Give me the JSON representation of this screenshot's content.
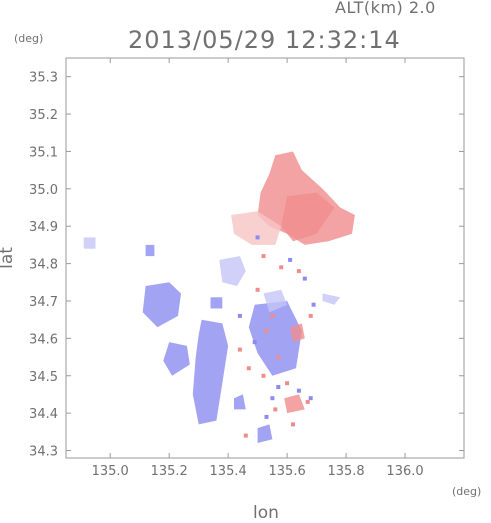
{
  "header": {
    "alt_label": "ALT(km) 2.0",
    "timestamp": "2013/05/29 12:32:14",
    "unit_y": "(deg)",
    "unit_x": "(deg)"
  },
  "chart_data": {
    "type": "heatmap",
    "xlabel": "lon",
    "ylabel": "lat",
    "xlim": [
      134.85,
      136.2
    ],
    "ylim": [
      34.28,
      35.35
    ],
    "x_ticks": [
      "135.0",
      "135.2",
      "135.4",
      "135.6",
      "135.8",
      "136.0"
    ],
    "y_ticks": [
      "34.3",
      "34.4",
      "34.5",
      "34.6",
      "34.7",
      "34.8",
      "34.9",
      "35.0",
      "35.1",
      "35.2",
      "35.3"
    ],
    "x_tick_values": [
      135.0,
      135.2,
      135.4,
      135.6,
      135.8,
      136.0
    ],
    "y_tick_values": [
      34.3,
      34.4,
      34.5,
      34.6,
      34.7,
      34.8,
      34.9,
      35.0,
      35.1,
      35.2,
      35.3
    ],
    "colors": {
      "positive": "#f08c8c",
      "positive_light": "#f6c4c4",
      "negative": "#8c8cf0",
      "negative_light": "#c4c4f6"
    },
    "regions": [
      {
        "polarity": "positive",
        "points": [
          [
            135.56,
            35.09
          ],
          [
            135.62,
            35.1
          ],
          [
            135.65,
            35.05
          ],
          [
            135.72,
            35.0
          ],
          [
            135.78,
            34.95
          ],
          [
            135.83,
            34.93
          ],
          [
            135.82,
            34.88
          ],
          [
            135.74,
            34.86
          ],
          [
            135.66,
            34.85
          ],
          [
            135.6,
            34.88
          ],
          [
            135.54,
            34.9
          ],
          [
            135.5,
            34.93
          ],
          [
            135.51,
            34.99
          ],
          [
            135.54,
            35.04
          ]
        ]
      },
      {
        "polarity": "positive",
        "points": [
          [
            135.6,
            34.98
          ],
          [
            135.7,
            34.99
          ],
          [
            135.76,
            34.95
          ],
          [
            135.7,
            34.88
          ],
          [
            135.62,
            34.86
          ],
          [
            135.58,
            34.9
          ]
        ]
      },
      {
        "polarity": "positive_light",
        "points": [
          [
            135.41,
            34.93
          ],
          [
            135.5,
            34.94
          ],
          [
            135.58,
            34.9
          ],
          [
            135.56,
            34.85
          ],
          [
            135.48,
            34.85
          ],
          [
            135.42,
            34.88
          ]
        ]
      },
      {
        "polarity": "negative",
        "points": [
          [
            135.12,
            34.74
          ],
          [
            135.2,
            34.75
          ],
          [
            135.24,
            34.72
          ],
          [
            135.23,
            34.66
          ],
          [
            135.16,
            34.63
          ],
          [
            135.11,
            34.67
          ]
        ]
      },
      {
        "polarity": "negative",
        "points": [
          [
            135.31,
            34.65
          ],
          [
            135.38,
            34.64
          ],
          [
            135.4,
            34.58
          ],
          [
            135.38,
            34.48
          ],
          [
            135.36,
            34.38
          ],
          [
            135.3,
            34.37
          ],
          [
            135.28,
            34.45
          ],
          [
            135.29,
            34.55
          ],
          [
            135.3,
            34.61
          ]
        ]
      },
      {
        "polarity": "negative",
        "points": [
          [
            135.2,
            34.59
          ],
          [
            135.26,
            34.58
          ],
          [
            135.27,
            34.53
          ],
          [
            135.21,
            34.5
          ],
          [
            135.18,
            34.54
          ]
        ]
      },
      {
        "polarity": "negative_light",
        "points": [
          [
            135.37,
            34.81
          ],
          [
            135.44,
            34.82
          ],
          [
            135.46,
            34.78
          ],
          [
            135.43,
            34.74
          ],
          [
            135.38,
            34.75
          ]
        ]
      },
      {
        "polarity": "negative",
        "points": [
          [
            135.49,
            34.69
          ],
          [
            135.6,
            34.7
          ],
          [
            135.65,
            34.62
          ],
          [
            135.63,
            34.52
          ],
          [
            135.55,
            34.5
          ],
          [
            135.5,
            34.56
          ],
          [
            135.47,
            34.63
          ]
        ]
      },
      {
        "polarity": "negative_light",
        "points": [
          [
            135.52,
            34.72
          ],
          [
            135.58,
            34.73
          ],
          [
            135.6,
            34.69
          ],
          [
            135.54,
            34.67
          ]
        ]
      },
      {
        "polarity": "negative",
        "points": [
          [
            135.5,
            34.36
          ],
          [
            135.54,
            34.37
          ],
          [
            135.55,
            34.33
          ],
          [
            135.5,
            34.32
          ]
        ]
      },
      {
        "polarity": "negative",
        "points": [
          [
            135.42,
            34.44
          ],
          [
            135.45,
            34.45
          ],
          [
            135.46,
            34.41
          ],
          [
            135.42,
            34.41
          ]
        ]
      },
      {
        "polarity": "negative",
        "points": [
          [
            135.34,
            34.71
          ],
          [
            135.38,
            34.71
          ],
          [
            135.38,
            34.68
          ],
          [
            135.34,
            34.68
          ]
        ]
      },
      {
        "polarity": "negative_light",
        "points": [
          [
            134.91,
            34.87
          ],
          [
            134.95,
            34.87
          ],
          [
            134.95,
            34.84
          ],
          [
            134.91,
            34.84
          ]
        ]
      },
      {
        "polarity": "negative",
        "points": [
          [
            135.12,
            34.85
          ],
          [
            135.15,
            34.85
          ],
          [
            135.15,
            34.82
          ],
          [
            135.12,
            34.82
          ]
        ]
      },
      {
        "polarity": "positive",
        "points": [
          [
            135.61,
            34.63
          ],
          [
            135.65,
            34.64
          ],
          [
            135.66,
            34.6
          ],
          [
            135.62,
            34.59
          ]
        ]
      },
      {
        "polarity": "positive",
        "points": [
          [
            135.59,
            34.44
          ],
          [
            135.64,
            34.45
          ],
          [
            135.66,
            34.41
          ],
          [
            135.6,
            34.4
          ]
        ]
      },
      {
        "polarity": "negative_light",
        "points": [
          [
            135.72,
            34.72
          ],
          [
            135.78,
            34.71
          ],
          [
            135.76,
            34.69
          ],
          [
            135.72,
            34.7
          ]
        ]
      }
    ],
    "speckles": [
      {
        "polarity": "positive",
        "lon": 135.52,
        "lat": 34.82
      },
      {
        "polarity": "negative",
        "lon": 135.5,
        "lat": 34.87
      },
      {
        "polarity": "positive",
        "lon": 135.58,
        "lat": 34.79
      },
      {
        "polarity": "negative",
        "lon": 135.61,
        "lat": 34.81
      },
      {
        "polarity": "positive",
        "lon": 135.64,
        "lat": 34.78
      },
      {
        "polarity": "negative",
        "lon": 135.66,
        "lat": 34.76
      },
      {
        "polarity": "positive",
        "lon": 135.55,
        "lat": 34.66
      },
      {
        "polarity": "positive",
        "lon": 135.53,
        "lat": 34.62
      },
      {
        "polarity": "positive",
        "lon": 135.57,
        "lat": 34.55
      },
      {
        "polarity": "negative",
        "lon": 135.49,
        "lat": 34.59
      },
      {
        "polarity": "positive",
        "lon": 135.47,
        "lat": 34.52
      },
      {
        "polarity": "positive",
        "lon": 135.6,
        "lat": 34.48
      },
      {
        "polarity": "negative",
        "lon": 135.64,
        "lat": 34.46
      },
      {
        "polarity": "positive",
        "lon": 135.67,
        "lat": 34.43
      },
      {
        "polarity": "negative",
        "lon": 135.68,
        "lat": 34.44
      },
      {
        "polarity": "positive",
        "lon": 135.56,
        "lat": 34.41
      },
      {
        "polarity": "negative",
        "lon": 135.53,
        "lat": 34.39
      },
      {
        "polarity": "positive",
        "lon": 135.62,
        "lat": 34.37
      },
      {
        "polarity": "positive",
        "lon": 135.44,
        "lat": 34.57
      },
      {
        "polarity": "negative",
        "lon": 135.44,
        "lat": 34.66
      },
      {
        "polarity": "positive",
        "lon": 135.5,
        "lat": 34.73
      },
      {
        "polarity": "negative",
        "lon": 135.69,
        "lat": 34.69
      },
      {
        "polarity": "positive",
        "lon": 135.68,
        "lat": 34.66
      },
      {
        "polarity": "negative",
        "lon": 135.55,
        "lat": 34.44
      },
      {
        "polarity": "positive",
        "lon": 135.46,
        "lat": 34.34
      },
      {
        "polarity": "negative",
        "lon": 135.57,
        "lat": 34.47
      },
      {
        "polarity": "positive",
        "lon": 135.52,
        "lat": 34.5
      }
    ]
  }
}
